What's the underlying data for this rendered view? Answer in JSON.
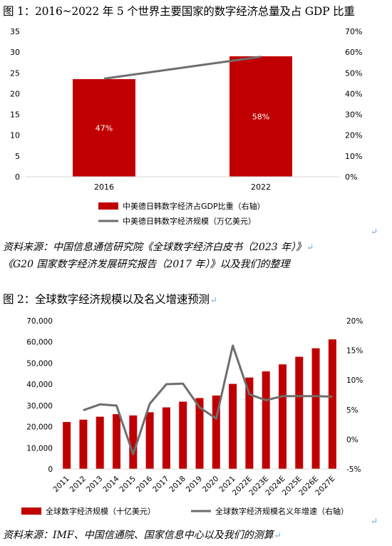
{
  "figure1": {
    "title": "图 1：2016~2022 年 5 个世界主要国家的数字经济总量及占 GDP 比重",
    "source_line1": "资料来源：中国信息通信研究院《全球数字经济白皮书（2023 年）》",
    "source_line2": "《G20 国家数字经济发展研究报告（2017 年）》以及我们的整理"
  },
  "figure2": {
    "title": "图 2：全球数字经济规模以及名义增速预测",
    "source": "资料来源：IMF、中国信通院、国家信息中心以及我们的测算"
  },
  "return_mark": "↵",
  "colors": {
    "bar": "#c00000",
    "line": "#6e6e6e",
    "axis": "#d9d9d9"
  },
  "chart_data": [
    {
      "type": "bar",
      "categories": [
        "2016",
        "2022"
      ],
      "series": [
        {
          "name": "中美德日韩数字经济占GDP比重（右轴）",
          "type": "bar",
          "axis": "right",
          "values": [
            47,
            58
          ],
          "data_labels": [
            "47%",
            "58%"
          ]
        },
        {
          "name": "中美德日韩数字经济规模（万亿美元）",
          "type": "line",
          "axis": "left",
          "values": [
            23.6,
            28.9
          ]
        }
      ],
      "left_axis": {
        "ylim": [
          0,
          35
        ],
        "ticks": [
          "0",
          "5",
          "10",
          "15",
          "20",
          "25",
          "30",
          "35"
        ]
      },
      "right_axis": {
        "ylim": [
          0,
          70
        ],
        "ticks": [
          "0%",
          "10%",
          "20%",
          "30%",
          "40%",
          "50%",
          "60%",
          "70%"
        ]
      },
      "legend_position": "bottom",
      "grid": false
    },
    {
      "type": "bar",
      "categories": [
        "2011",
        "2012",
        "2013",
        "2014",
        "2015",
        "2016",
        "2017",
        "2018",
        "2019",
        "2020",
        "2021",
        "2022E",
        "2023E",
        "2024E",
        "2025E",
        "2026E",
        "2027E"
      ],
      "series": [
        {
          "name": "全球数字经济规模（十亿美元）",
          "type": "bar",
          "axis": "left",
          "values": [
            22200,
            23300,
            24700,
            25900,
            25300,
            26800,
            29100,
            31800,
            33500,
            34700,
            40200,
            43200,
            46100,
            49400,
            53000,
            57000,
            61200
          ]
        },
        {
          "name": "全球数字经济规模名义年增速（右轴）",
          "type": "line",
          "axis": "right",
          "values": [
            null,
            4.9,
            5.9,
            5.7,
            -2.5,
            6.0,
            9.3,
            9.4,
            5.4,
            3.5,
            15.8,
            7.6,
            6.6,
            7.3,
            7.3,
            7.3,
            7.2
          ]
        }
      ],
      "left_axis": {
        "ylim": [
          0,
          70000
        ],
        "ticks": [
          "0",
          "10,000",
          "20,000",
          "30,000",
          "40,000",
          "50,000",
          "60,000",
          "70,000"
        ]
      },
      "right_axis": {
        "ylim": [
          -5,
          20
        ],
        "ticks": [
          "-5%",
          "0%",
          "5%",
          "10%",
          "15%",
          "20%"
        ]
      },
      "legend_position": "bottom",
      "grid": false
    }
  ]
}
